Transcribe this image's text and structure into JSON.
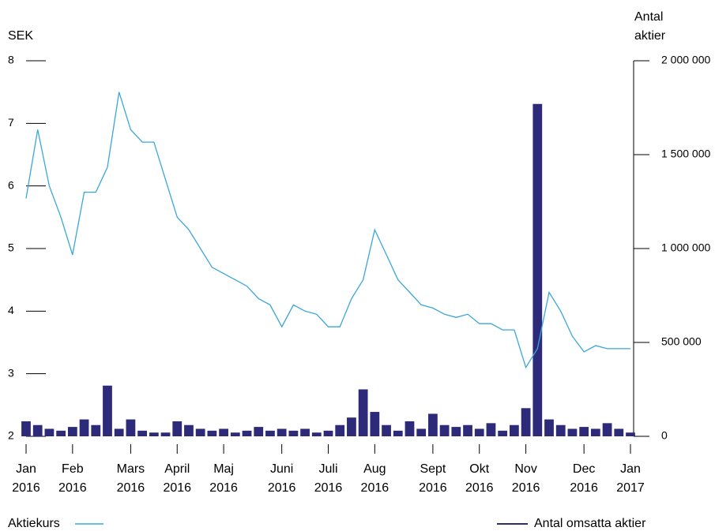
{
  "chart_data": {
    "type": "line_bar",
    "y_label": "SEK",
    "y2_label": "Antal aktier",
    "categories": [
      "Jan 2016",
      null,
      null,
      null,
      "Feb 2016",
      null,
      null,
      null,
      null,
      "Mars 2016",
      null,
      null,
      null,
      "April 2016",
      null,
      null,
      null,
      "Maj 2016",
      null,
      null,
      null,
      null,
      "Juni 2016",
      null,
      null,
      null,
      "Juli 2016",
      null,
      null,
      null,
      "Aug 2016",
      null,
      null,
      null,
      null,
      "Sept 2016",
      null,
      null,
      null,
      "Okt 2016",
      null,
      null,
      null,
      "Nov 2016",
      null,
      null,
      null,
      null,
      "Dec 2016",
      null,
      null,
      null,
      "Jan 2017"
    ],
    "series": [
      {
        "name": "Aktiekurs",
        "type": "line",
        "color": "#3aa7d9",
        "values": [
          5.8,
          6.9,
          6.0,
          5.5,
          4.9,
          5.9,
          5.9,
          6.3,
          7.5,
          6.9,
          6.7,
          6.7,
          6.1,
          5.5,
          5.3,
          5.0,
          4.7,
          4.6,
          4.5,
          4.4,
          4.2,
          4.1,
          3.75,
          4.1,
          4.0,
          3.95,
          3.75,
          3.75,
          4.2,
          4.5,
          5.3,
          4.9,
          4.5,
          4.3,
          4.1,
          4.05,
          3.95,
          3.9,
          3.95,
          3.8,
          3.8,
          3.7,
          3.7,
          3.1,
          3.4,
          4.3,
          4.0,
          3.6,
          3.35,
          3.45,
          3.4,
          3.4,
          3.4
        ]
      },
      {
        "name": "Antal omsatta aktier",
        "type": "bar",
        "axis": "y2",
        "color": "#2e2a7a",
        "values": [
          80000,
          60000,
          40000,
          30000,
          50000,
          90000,
          60000,
          270000,
          40000,
          90000,
          30000,
          20000,
          20000,
          80000,
          60000,
          40000,
          30000,
          40000,
          20000,
          30000,
          50000,
          30000,
          40000,
          30000,
          40000,
          20000,
          30000,
          60000,
          100000,
          250000,
          130000,
          60000,
          30000,
          80000,
          40000,
          120000,
          60000,
          50000,
          60000,
          40000,
          70000,
          30000,
          60000,
          150000,
          1770000,
          90000,
          60000,
          40000,
          50000,
          40000,
          70000,
          40000,
          20000
        ]
      }
    ],
    "ylim": [
      2,
      8
    ],
    "yticks": [
      2,
      3,
      4,
      5,
      6,
      7,
      8
    ],
    "y2lim": [
      0,
      2000000
    ],
    "y2ticks": [
      0,
      {
        "value": 500000,
        "label": "500 000"
      },
      {
        "value": 1000000,
        "label": "1 000 000"
      },
      {
        "value": 1500000,
        "label": "1 500 000"
      },
      {
        "value": 2000000,
        "label": "2 000 000"
      }
    ],
    "legend": "bottom"
  }
}
